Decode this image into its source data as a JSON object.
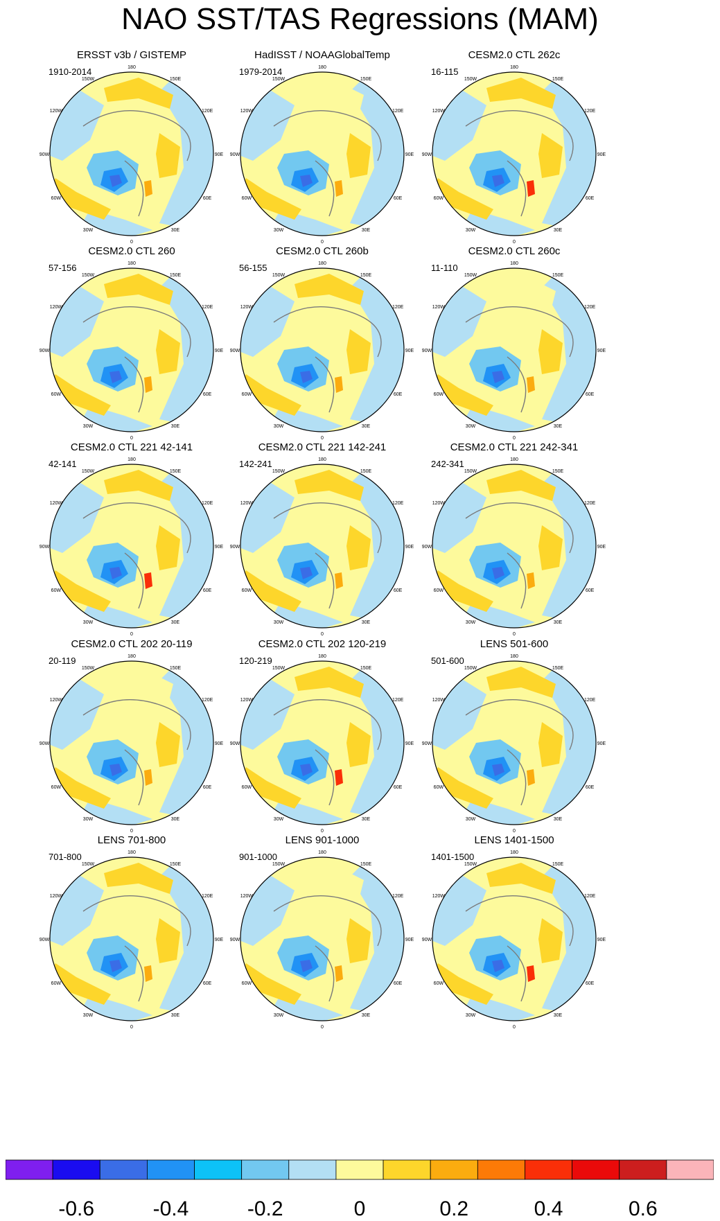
{
  "title": "NAO SST/TAS Regressions (MAM)",
  "chart_data": {
    "type": "polar-stereographic contour map panels",
    "projection": "North polar stereographic",
    "variable": "SST/TAS regression on NAO (MAM)",
    "lon_labels": [
      "180",
      "150E",
      "120E",
      "90E",
      "60E",
      "30E",
      "0",
      "30W",
      "60W",
      "90W",
      "120W",
      "150W"
    ],
    "panels": [
      {
        "title": "ERSST v3b / GISTEMP",
        "period": "1910-2014"
      },
      {
        "title": "HadISST / NOAAGlobalTemp",
        "period": "1979-2014"
      },
      {
        "title": "CESM2.0 CTL 262c",
        "period": "16-115"
      },
      {
        "title": "CESM2.0 CTL 260",
        "period": "57-156"
      },
      {
        "title": "CESM2.0 CTL 260b",
        "period": "56-155"
      },
      {
        "title": "CESM2.0 CTL 260c",
        "period": "11-110"
      },
      {
        "title": "CESM2.0 CTL 221 42-141",
        "period": "42-141"
      },
      {
        "title": "CESM2.0 CTL 221 142-241",
        "period": "142-241"
      },
      {
        "title": "CESM2.0 CTL 221 242-341",
        "period": "242-341"
      },
      {
        "title": "CESM2.0 CTL 202 20-119",
        "period": "20-119"
      },
      {
        "title": "CESM2.0 CTL 202 120-219",
        "period": "120-219"
      },
      {
        "title": "LENS 501-600",
        "period": "501-600"
      },
      {
        "title": "LENS 701-800",
        "period": "701-800"
      },
      {
        "title": "LENS 901-1000",
        "period": "901-1000"
      },
      {
        "title": "LENS 1401-1500",
        "period": "1401-1500"
      }
    ],
    "colorbar": {
      "levels": [
        -0.7,
        -0.6,
        -0.5,
        -0.4,
        -0.3,
        -0.2,
        -0.1,
        0,
        0.1,
        0.2,
        0.3,
        0.4,
        0.5,
        0.6,
        0.7
      ],
      "colors": [
        "#7f1fef",
        "#1a0cf0",
        "#3a6de6",
        "#2192f5",
        "#0dc2f7",
        "#72c8f0",
        "#b3dff4",
        "#fdfa9c",
        "#fdd62b",
        "#fbac0f",
        "#fc7a07",
        "#fa2f08",
        "#ea0a0a",
        "#cc1e1e",
        "#fbb4b9"
      ],
      "tick_labels": [
        "-0.6",
        "-0.4",
        "-0.2",
        "0",
        "0.2",
        "0.4",
        "0.6"
      ],
      "tick_values": [
        -0.6,
        -0.4,
        -0.2,
        0,
        0.2,
        0.4,
        0.6
      ]
    }
  }
}
